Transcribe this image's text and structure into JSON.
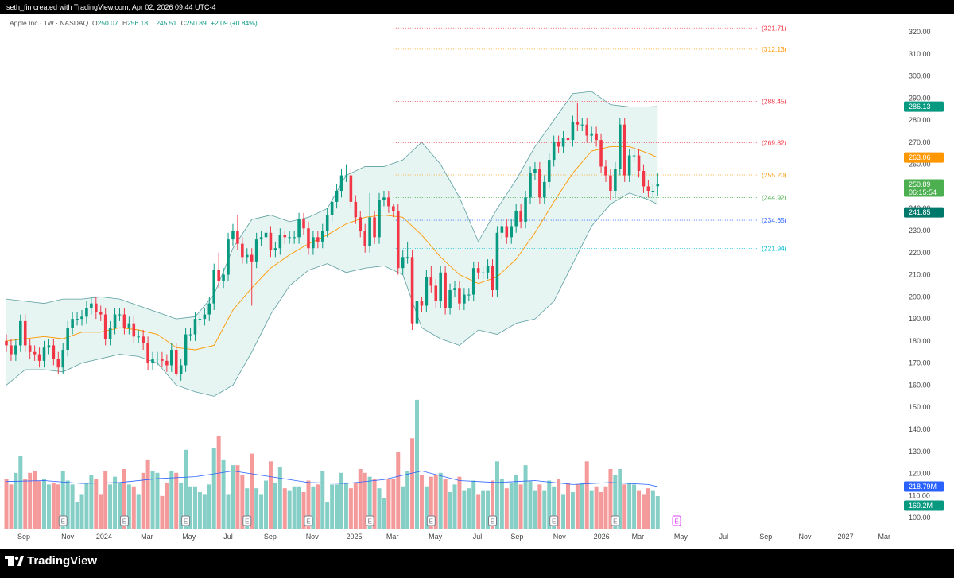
{
  "header": {
    "credit": "seth_fin created with TradingView.com, Apr 02, 2026 09:44 UTC-4"
  },
  "footer": {
    "brand": "TradingView"
  },
  "chart_data": {
    "type": "candlestick",
    "symbol": "Apple Inc · 1W · NASDAQ",
    "ohlc_labels": [
      "O",
      "H",
      "L",
      "C"
    ],
    "change": "+2.09 (+0.84%)",
    "open": [
      180,
      178,
      174,
      178,
      189,
      178,
      175,
      174,
      171,
      177,
      178,
      172,
      168,
      176,
      186,
      190,
      190,
      191,
      195,
      197,
      193,
      192,
      181,
      186,
      192,
      192,
      186,
      188,
      182,
      182,
      179,
      170,
      172,
      172,
      171,
      169,
      176,
      165,
      169,
      183,
      183,
      190,
      190,
      192,
      197,
      212,
      207,
      210,
      226,
      230,
      224,
      218,
      219,
      216,
      226,
      227,
      229,
      221,
      222,
      228,
      227,
      227,
      227,
      235,
      231,
      222,
      227,
      225,
      230,
      237,
      243,
      248,
      255,
      255,
      243,
      236,
      230,
      223,
      236,
      227,
      244,
      245,
      241,
      239,
      213,
      218,
      218,
      188,
      198,
      196,
      209,
      205,
      198,
      211,
      195,
      203,
      204,
      197,
      201,
      201,
      213,
      211,
      211,
      214,
      203,
      229,
      232,
      227,
      232,
      239,
      234,
      245,
      256,
      258,
      245,
      252,
      262,
      270,
      268,
      272,
      271,
      279,
      278,
      278,
      273,
      274,
      271,
      259,
      255,
      248,
      258,
      278,
      255,
      264,
      264,
      257,
      250,
      248,
      250.07
    ],
    "high": [
      183,
      181,
      181,
      192,
      192,
      181,
      178,
      177,
      180,
      181,
      181,
      175,
      179,
      189,
      193,
      193,
      194,
      198,
      200,
      200,
      196,
      195,
      189,
      195,
      195,
      195,
      191,
      191,
      185,
      185,
      182,
      175,
      175,
      175,
      174,
      179,
      179,
      172,
      186,
      186,
      193,
      193,
      195,
      200,
      215,
      220,
      213,
      229,
      233,
      237,
      227,
      222,
      222,
      229,
      230,
      232,
      232,
      225,
      231,
      230,
      230,
      230,
      238,
      238,
      234,
      230,
      230,
      233,
      240,
      246,
      251,
      258,
      260,
      258,
      246,
      239,
      233,
      247,
      239,
      247,
      248,
      248,
      242,
      242,
      221,
      225,
      221,
      201,
      200,
      212,
      214,
      208,
      214,
      214,
      206,
      207,
      207,
      204,
      204,
      216,
      216,
      214,
      217,
      217,
      232,
      235,
      235,
      235,
      242,
      242,
      248,
      259,
      261,
      261,
      255,
      265,
      273,
      273,
      275,
      275,
      282,
      288,
      281,
      281,
      277,
      277,
      274,
      262,
      258,
      261,
      281,
      281,
      267,
      268,
      267,
      260,
      253,
      251,
      256.18
    ],
    "low": [
      175,
      171,
      171,
      175,
      175,
      172,
      171,
      168,
      168,
      174,
      169,
      165,
      165,
      173,
      183,
      187,
      187,
      188,
      192,
      190,
      189,
      178,
      178,
      183,
      189,
      183,
      183,
      179,
      179,
      176,
      167,
      167,
      169,
      168,
      166,
      166,
      164,
      162,
      166,
      180,
      180,
      187,
      187,
      189,
      194,
      204,
      204,
      207,
      223,
      221,
      215,
      215,
      196,
      213,
      223,
      224,
      218,
      218,
      219,
      224,
      224,
      224,
      224,
      228,
      219,
      219,
      222,
      222,
      227,
      234,
      240,
      245,
      252,
      240,
      233,
      227,
      220,
      220,
      224,
      224,
      241,
      238,
      236,
      210,
      210,
      215,
      185,
      169,
      193,
      193,
      202,
      195,
      195,
      192,
      192,
      200,
      194,
      194,
      198,
      198,
      208,
      208,
      208,
      200,
      200,
      226,
      224,
      224,
      229,
      231,
      231,
      242,
      253,
      242,
      242,
      249,
      259,
      265,
      265,
      268,
      268,
      275,
      275,
      270,
      270,
      268,
      256,
      252,
      244,
      245,
      255,
      252,
      252,
      261,
      254,
      247,
      245,
      245,
      245.51
    ],
    "close": [
      178,
      174,
      178,
      189,
      178,
      175,
      174,
      171,
      177,
      178,
      172,
      168,
      176,
      186,
      190,
      190,
      191,
      195,
      197,
      193,
      192,
      181,
      186,
      192,
      192,
      186,
      188,
      182,
      182,
      179,
      170,
      172,
      172,
      171,
      169,
      176,
      165,
      169,
      183,
      183,
      190,
      190,
      192,
      197,
      212,
      207,
      210,
      226,
      230,
      224,
      218,
      219,
      216,
      226,
      227,
      229,
      221,
      222,
      228,
      227,
      227,
      227,
      235,
      231,
      222,
      227,
      225,
      230,
      237,
      243,
      248,
      255,
      255,
      243,
      236,
      230,
      223,
      236,
      227,
      244,
      245,
      241,
      239,
      213,
      218,
      218,
      188,
      198,
      196,
      209,
      205,
      198,
      211,
      195,
      203,
      204,
      197,
      201,
      201,
      213,
      211,
      211,
      214,
      203,
      229,
      232,
      227,
      232,
      239,
      234,
      245,
      256,
      258,
      245,
      252,
      262,
      270,
      268,
      272,
      271,
      279,
      278,
      278,
      273,
      274,
      271,
      259,
      255,
      248,
      258,
      278,
      255,
      264,
      264,
      257,
      250,
      248,
      248,
      250.89
    ],
    "up_color": "#089981",
    "down_color": "#f23645",
    "grid": false,
    "countdown": "06:15:54",
    "xlim": [
      0,
      190
    ],
    "xticks": [
      {
        "value": 3.7,
        "label": "Sep"
      },
      {
        "value": 13,
        "label": "Nov"
      },
      {
        "value": 20.7,
        "label": "2024"
      },
      {
        "value": 29.8,
        "label": "Mar"
      },
      {
        "value": 38.7,
        "label": "May"
      },
      {
        "value": 47,
        "label": "Jul"
      },
      {
        "value": 55.9,
        "label": "Sep"
      },
      {
        "value": 64.8,
        "label": "Nov"
      },
      {
        "value": 73.7,
        "label": "2025"
      },
      {
        "value": 81.8,
        "label": "Mar"
      },
      {
        "value": 90.9,
        "label": "May"
      },
      {
        "value": 99.8,
        "label": "Jul"
      },
      {
        "value": 108.2,
        "label": "Sep"
      },
      {
        "value": 117.2,
        "label": "Nov"
      },
      {
        "value": 126.1,
        "label": "2026"
      },
      {
        "value": 133.8,
        "label": "Mar"
      },
      {
        "value": 142.9,
        "label": "May"
      },
      {
        "value": 152,
        "label": "Jul"
      },
      {
        "value": 160.9,
        "label": "Sep"
      },
      {
        "value": 169.2,
        "label": "Nov"
      },
      {
        "value": 177.8,
        "label": "2027"
      },
      {
        "value": 186,
        "label": "Mar"
      }
    ],
    "ylim": [
      95,
      327.2
    ],
    "yticks": [
      {
        "value": 100,
        "label": "100.00"
      },
      {
        "value": 110,
        "label": "110.00"
      },
      {
        "value": 120,
        "label": "120.00"
      },
      {
        "value": 130,
        "label": "130.00"
      },
      {
        "value": 140,
        "label": "140.00"
      },
      {
        "value": 150,
        "label": "150.00"
      },
      {
        "value": 160,
        "label": "160.00"
      },
      {
        "value": 170,
        "label": "170.00"
      },
      {
        "value": 180,
        "label": "180.00"
      },
      {
        "value": 190,
        "label": "190.00"
      },
      {
        "value": 200,
        "label": "200.00"
      },
      {
        "value": 210,
        "label": "210.00"
      },
      {
        "value": 220,
        "label": "220.00"
      },
      {
        "value": 230,
        "label": "230.00"
      },
      {
        "value": 240,
        "label": "240.00"
      },
      {
        "value": 250,
        "label": "250.00"
      },
      {
        "value": 260,
        "label": "260.00"
      },
      {
        "value": 270,
        "label": "270.00"
      },
      {
        "value": 280,
        "label": "280.00"
      },
      {
        "value": 290,
        "label": "290.00"
      },
      {
        "value": 300,
        "label": "300.00"
      },
      {
        "value": 310,
        "label": "310.00"
      },
      {
        "value": 320,
        "label": "320.00"
      }
    ],
    "bollinger": {
      "x": [
        0,
        4,
        8,
        12,
        16,
        20,
        24,
        28,
        32,
        36,
        40,
        44,
        48,
        52,
        56,
        60,
        64,
        68,
        72,
        76,
        80,
        84,
        88,
        92,
        96,
        100,
        104,
        108,
        112,
        116,
        120,
        124,
        128,
        132,
        136,
        138
      ],
      "upper": [
        199,
        198,
        197,
        199,
        199,
        200,
        199,
        196,
        193,
        190,
        191,
        201,
        222,
        235,
        237,
        234,
        236,
        240,
        255,
        259,
        259,
        262,
        270,
        260,
        245,
        225,
        240,
        253,
        268,
        280,
        292,
        293,
        287,
        286,
        286,
        286.13
      ],
      "lower": [
        160,
        167,
        167,
        166,
        170,
        172,
        174,
        173,
        170,
        160,
        157,
        155,
        160,
        175,
        192,
        205,
        212,
        215,
        211,
        213,
        214,
        210,
        186,
        181,
        178,
        185,
        183,
        188,
        190,
        198,
        215,
        232,
        242,
        247,
        244,
        241.85
      ],
      "basis": [
        180,
        181,
        182,
        181,
        184,
        184,
        186,
        185,
        183,
        177,
        176,
        178,
        194,
        204,
        213,
        219,
        224,
        228,
        233,
        236,
        237,
        236,
        228,
        218,
        210,
        206,
        209,
        217,
        229,
        243,
        256,
        266,
        268,
        268,
        265,
        263.06
      ],
      "basis_color": "#ff9800",
      "band_color": "#5b9ea0",
      "fill_color": "#e6f4f2",
      "upper_badge": "#089981",
      "lower_badge": "#00796b"
    },
    "levels_span": [
      82,
      159
    ],
    "levels": [
      {
        "value": 321.71,
        "label": "(321.71)",
        "color": "#f23645"
      },
      {
        "value": 312.13,
        "label": "(312.13)",
        "color": "#ff9800"
      },
      {
        "value": 288.45,
        "label": "(288.45)",
        "color": "#f23645"
      },
      {
        "value": 269.82,
        "label": "(269.82)",
        "color": "#f23645"
      },
      {
        "value": 255.2,
        "label": "(255.20)",
        "color": "#ff9800"
      },
      {
        "value": 244.92,
        "label": "(244.92)",
        "color": "#4caf50"
      },
      {
        "value": 234.65,
        "label": "(234.65)",
        "color": "#2962ff"
      },
      {
        "value": 221.94,
        "label": "(221.94)",
        "color": "#00bcd4"
      }
    ],
    "volume": {
      "values": [
        260,
        230,
        290,
        380,
        260,
        290,
        300,
        250,
        260,
        230,
        240,
        230,
        300,
        250,
        230,
        140,
        180,
        240,
        280,
        260,
        180,
        300,
        230,
        270,
        240,
        310,
        230,
        220,
        180,
        290,
        360,
        300,
        290,
        170,
        240,
        300,
        290,
        240,
        410,
        220,
        220,
        190,
        180,
        230,
        420,
        480,
        360,
        180,
        330,
        330,
        280,
        210,
        390,
        210,
        180,
        250,
        350,
        240,
        320,
        210,
        200,
        220,
        220,
        190,
        250,
        220,
        230,
        300,
        140,
        230,
        230,
        290,
        240,
        210,
        240,
        310,
        290,
        270,
        260,
        210,
        160,
        260,
        260,
        400,
        220,
        300,
        470,
        670,
        280,
        220,
        270,
        280,
        290,
        260,
        190,
        230,
        270,
        200,
        210,
        250,
        180,
        200,
        200,
        250,
        350,
        260,
        210,
        240,
        280,
        230,
        330,
        250,
        200,
        230,
        200,
        250,
        220,
        260,
        180,
        240,
        190,
        230,
        240,
        350,
        200,
        220,
        190,
        220,
        310,
        280,
        310,
        230,
        240,
        230,
        200,
        180,
        210,
        200,
        169.2
      ],
      "label": "169.2M",
      "up_color": "#86cfc6",
      "down_color": "#f49a9a",
      "ma": {
        "x": [
          0,
          8,
          16,
          24,
          32,
          40,
          48,
          56,
          64,
          72,
          80,
          88,
          96,
          104,
          112,
          120,
          128,
          136,
          138
        ],
        "values": [
          245,
          250,
          235,
          240,
          260,
          270,
          300,
          270,
          240,
          235,
          255,
          300,
          250,
          240,
          250,
          230,
          240,
          230,
          218.79
        ],
        "label": "218.79M",
        "color": "#2962ff"
      }
    },
    "earnings": {
      "label": "E",
      "x": [
        12,
        25,
        38,
        51,
        64,
        77,
        90,
        103,
        116,
        129
      ],
      "upcoming": 142
    }
  }
}
